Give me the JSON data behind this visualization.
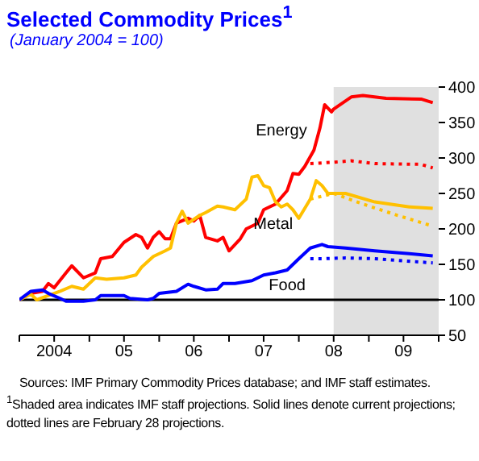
{
  "chart_data": {
    "type": "line",
    "title": "Selected Commodity Prices$^{1}$",
    "subtitle": "(January 2004 = 100)",
    "xlim": [
      "2004-01",
      "2010-01"
    ],
    "xticks": [
      {
        "value": "2004-01",
        "label": null
      },
      {
        "value": "2004-07",
        "label": "2004"
      },
      {
        "value": "2005-01",
        "label": null
      },
      {
        "value": "2005-07",
        "label": "05"
      },
      {
        "value": "2006-01",
        "label": null
      },
      {
        "value": "2006-07",
        "label": "06"
      },
      {
        "value": "2007-01",
        "label": null
      },
      {
        "value": "2007-07",
        "label": "07"
      },
      {
        "value": "2008-01",
        "label": null
      },
      {
        "value": "2008-07",
        "label": "08"
      },
      {
        "value": "2009-01",
        "label": null
      },
      {
        "value": "2009-07",
        "label": "09"
      },
      {
        "value": "2010-01",
        "label": null
      }
    ],
    "ylim": [
      50,
      400
    ],
    "yticks": [
      50,
      100,
      150,
      200,
      250,
      300,
      350,
      400
    ],
    "grid": false,
    "legend": false,
    "marker": "none",
    "series": [
      {
        "name": "Energy",
        "color": "#ff0000",
        "line_style": "solid",
        "x": [
          "2004-01",
          "2004-03",
          "2004-05",
          "2004-06",
          "2004-07",
          "2004-09",
          "2004-10",
          "2004-12",
          "2005-02",
          "2005-03",
          "2005-05",
          "2005-07",
          "2005-09",
          "2005-10",
          "2005-11",
          "2005-12",
          "2006-01",
          "2006-02",
          "2006-03",
          "2006-04",
          "2006-06",
          "2006-07",
          "2006-08",
          "2006-09",
          "2006-11",
          "2006-12",
          "2007-01",
          "2007-03",
          "2007-04",
          "2007-06",
          "2007-07",
          "2007-09",
          "2007-11",
          "2007-12",
          "2008-01",
          "2008-02",
          "2008-03-20",
          "2008-04-20",
          "2008-05-15",
          "2008-06-20",
          "2008-07",
          "2008-10",
          "2008-12",
          "2009-04",
          "2009-10",
          "2009-12"
        ],
        "values": [
          100,
          109,
          112,
          123,
          117,
          138,
          148,
          131,
          138,
          158,
          161,
          181,
          192,
          188,
          173,
          188,
          196,
          186,
          186,
          208,
          215,
          211,
          219,
          188,
          183,
          188,
          169,
          186,
          200,
          208,
          227,
          235,
          254,
          278,
          277,
          288,
          311,
          342,
          375,
          365,
          369,
          386,
          388,
          384,
          383,
          378
        ]
      },
      {
        "color": "#ff0000",
        "line_style": "dotted",
        "x": [
          "2008-03",
          "2008-07",
          "2008-10",
          "2009-02",
          "2009-10",
          "2009-12"
        ],
        "values": [
          292,
          294,
          296,
          292,
          291,
          286
        ]
      },
      {
        "name": "Metal",
        "color": "#ffc000",
        "line_style": "solid",
        "x": [
          "2004-01",
          "2004-03",
          "2004-04",
          "2004-06",
          "2004-08",
          "2004-10",
          "2004-12",
          "2005-02",
          "2005-04",
          "2005-07",
          "2005-09",
          "2005-10",
          "2005-12",
          "2006-02",
          "2006-03",
          "2006-04",
          "2006-05",
          "2006-06",
          "2006-08",
          "2006-09",
          "2006-11",
          "2006-12",
          "2007-02",
          "2007-04",
          "2007-05",
          "2007-06",
          "2007-07",
          "2007-08",
          "2007-09",
          "2007-10",
          "2007-11",
          "2007-12",
          "2008-01",
          "2008-03",
          "2008-04",
          "2008-05",
          "2008-06",
          "2008-09",
          "2009-02",
          "2009-08",
          "2009-12"
        ],
        "values": [
          100,
          108,
          100,
          106,
          112,
          119,
          115,
          131,
          129,
          131,
          135,
          146,
          161,
          169,
          173,
          208,
          225,
          208,
          219,
          223,
          232,
          231,
          227,
          242,
          273,
          275,
          261,
          258,
          238,
          231,
          235,
          227,
          215,
          242,
          268,
          261,
          250,
          250,
          238,
          231,
          229
        ]
      },
      {
        "color": "#ffc000",
        "line_style": "dotted",
        "x": [
          "2008-03",
          "2008-07",
          "2008-12",
          "2009-06",
          "2009-12"
        ],
        "values": [
          242,
          250,
          235,
          219,
          204
        ]
      },
      {
        "name": "Food",
        "color": "#0000ff",
        "line_style": "solid",
        "x": [
          "2004-01",
          "2004-03",
          "2004-05",
          "2004-06",
          "2004-08",
          "2004-09",
          "2004-12",
          "2005-02",
          "2005-03",
          "2005-07",
          "2005-08",
          "2005-11",
          "2005-12",
          "2006-01",
          "2006-04",
          "2006-06",
          "2006-07",
          "2006-09",
          "2006-11",
          "2006-12",
          "2007-02",
          "2007-05",
          "2007-07",
          "2007-09",
          "2007-11",
          "2008-01",
          "2008-03",
          "2008-05",
          "2008-06",
          "2008-09",
          "2009-02",
          "2009-08",
          "2009-12"
        ],
        "values": [
          100,
          112,
          114,
          109,
          102,
          98,
          98,
          100,
          106,
          106,
          102,
          100,
          102,
          109,
          112,
          122,
          119,
          114,
          115,
          123,
          123,
          127,
          135,
          138,
          142,
          158,
          173,
          178,
          175,
          173,
          169,
          165,
          162
        ]
      },
      {
        "color": "#0000ff",
        "line_style": "dotted",
        "x": [
          "2008-03",
          "2008-05",
          "2008-09",
          "2009-02",
          "2009-12"
        ],
        "values": [
          158,
          158,
          159,
          158,
          152
        ]
      }
    ],
    "bands": [
      {
        "axis": "x",
        "from": "2008-07",
        "to": "2010-01",
        "color": "#e0e0e0"
      }
    ],
    "ref_lines": [
      {
        "axis": "y",
        "value": 100,
        "color": "#000000"
      }
    ],
    "annotations": [
      "Sources: IMF Primary Commodity Prices database; and IMF staff estimates.",
      "$^{1}$Shaded area indicates IMF staff projections. Solid lines denote current projections; dotted lines are February 28 projections."
    ]
  }
}
